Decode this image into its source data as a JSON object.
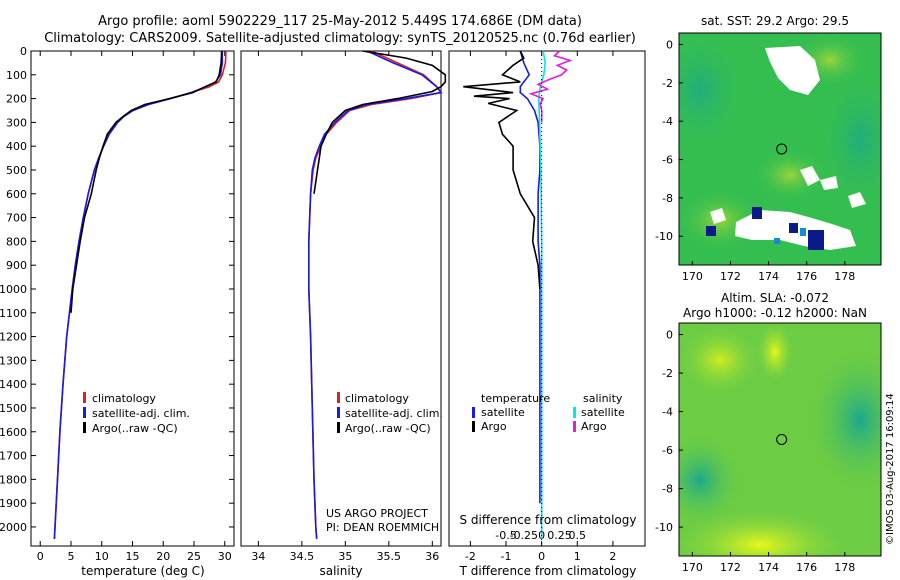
{
  "header": {
    "title_line1": "Argo profile: aoml 5902229_117 25-May-2012 5.449S 174.686E (DM data)",
    "title_line2": "Climatology: CARS2009. Satellite-adjusted climatology: synTS_20120525.nc (0.76d earlier)"
  },
  "colors": {
    "climatology": "#e02020",
    "satellite": "#1a1ae6",
    "argo": "#000000",
    "salinity_satellite": "#00e5ee",
    "salinity_argo": "#e21ee2"
  },
  "chart_data": [
    {
      "type": "line",
      "name": "temperature-profile",
      "xlabel": "temperature (deg C)",
      "ylabel": "",
      "xlim": [
        -1.5,
        31.5
      ],
      "ylim": [
        2080,
        0
      ],
      "xticks": [
        0,
        5,
        10,
        15,
        20,
        25,
        30
      ],
      "yticks": [
        0,
        100,
        200,
        300,
        400,
        500,
        600,
        700,
        800,
        900,
        1000,
        1100,
        1200,
        1300,
        1400,
        1500,
        1600,
        1700,
        1800,
        1900,
        2000
      ],
      "legend": [
        "climatology",
        "satellite-adj. clim.",
        "Argo(..raw -QC)"
      ],
      "series": [
        {
          "name": "climatology",
          "depth": [
            0,
            50,
            100,
            130,
            150,
            175,
            200,
            225,
            250,
            275,
            300,
            350,
            400,
            450,
            500,
            600,
            700,
            800,
            900,
            1000,
            1200,
            1400,
            1600,
            1800,
            2000,
            2050
          ],
          "values": [
            30.2,
            30.1,
            29.6,
            29,
            27.5,
            24.5,
            21,
            17.5,
            15,
            13.5,
            12.5,
            11.2,
            10.3,
            9.5,
            8.8,
            7.8,
            7,
            6.3,
            5.7,
            5.2,
            4.3,
            3.7,
            3.2,
            2.8,
            2.4,
            2.3
          ]
        },
        {
          "name": "satellite-adj. clim.",
          "depth": [
            0,
            50,
            100,
            130,
            150,
            175,
            200,
            225,
            250,
            275,
            300,
            350,
            400,
            450,
            500,
            600,
            700,
            800,
            900,
            1000,
            1200,
            1400,
            1600,
            1800,
            2000,
            2050
          ],
          "values": [
            29.6,
            29.6,
            29.3,
            28.5,
            27,
            24.5,
            21.2,
            17.6,
            15.1,
            13.6,
            12.6,
            11.2,
            10.3,
            9.5,
            8.8,
            7.8,
            7,
            6.3,
            5.7,
            5.2,
            4.3,
            3.7,
            3.2,
            2.8,
            2.4,
            2.3
          ]
        },
        {
          "name": "Argo(..raw -QC)",
          "depth": [
            0,
            50,
            100,
            130,
            150,
            175,
            200,
            225,
            250,
            275,
            300,
            350,
            400,
            450,
            500,
            600,
            700,
            800,
            900,
            1000,
            1100
          ],
          "values": [
            29.5,
            29.4,
            29.1,
            28.6,
            26.8,
            24.8,
            21,
            17,
            14.8,
            13.5,
            12.3,
            10.9,
            10.2,
            9.6,
            9.1,
            8.3,
            7.2,
            6.5,
            5.9,
            5.3,
            5
          ]
        }
      ]
    },
    {
      "type": "line",
      "name": "salinity-profile",
      "xlabel": "salinity",
      "xlim": [
        33.8,
        36.1
      ],
      "ylim": [
        2080,
        0
      ],
      "xticks": [
        34,
        34.5,
        35,
        35.5,
        36
      ],
      "legend": [
        "climatology",
        "satellite-adj. clim.",
        "Argo(..raw -QC)"
      ],
      "annotation": [
        "US ARGO PROJECT",
        "PI: DEAN ROEMMICH"
      ],
      "series": [
        {
          "name": "climatology",
          "depth": [
            0,
            50,
            100,
            150,
            175,
            200,
            225,
            250,
            300,
            350,
            400,
            450,
            500,
            600,
            800,
            1000,
            1200,
            1500,
            1800,
            2000,
            2050
          ],
          "values": [
            35.3,
            35.6,
            35.9,
            36.05,
            36.1,
            35.75,
            35.3,
            35.05,
            34.9,
            34.78,
            34.72,
            34.66,
            34.63,
            34.6,
            34.58,
            34.58,
            34.6,
            34.62,
            34.64,
            34.66,
            34.67
          ]
        },
        {
          "name": "satellite-adj. clim.",
          "depth": [
            0,
            50,
            100,
            150,
            175,
            200,
            225,
            250,
            300,
            350,
            400,
            450,
            500,
            600,
            800,
            1000,
            1200,
            1500,
            1800,
            2000,
            2050
          ],
          "values": [
            35.25,
            35.55,
            35.88,
            36.05,
            36.1,
            35.7,
            35.25,
            35.03,
            34.88,
            34.76,
            34.7,
            34.65,
            34.62,
            34.6,
            34.58,
            34.58,
            34.6,
            34.62,
            34.64,
            34.66,
            34.67
          ]
        },
        {
          "name": "Argo(..raw -QC)",
          "depth": [
            0,
            30,
            60,
            100,
            130,
            150,
            170,
            200,
            225,
            250,
            300,
            350,
            400,
            450,
            500,
            550,
            600
          ],
          "values": [
            35.2,
            35.7,
            36.0,
            36.15,
            36.15,
            36.1,
            36.0,
            35.6,
            35.2,
            35.0,
            34.85,
            34.78,
            34.72,
            34.7,
            34.68,
            34.66,
            34.64
          ]
        }
      ]
    },
    {
      "type": "line",
      "name": "difference-profile",
      "xlabel": "T difference from climatology",
      "xlabel_top": "S difference from climatology",
      "xlim": [
        -2.6,
        2.9
      ],
      "ylim": [
        2080,
        0
      ],
      "xticks": [
        -2,
        -1,
        0,
        1,
        2
      ],
      "top_ticks": [
        -0.5,
        -0.25,
        0,
        0.25,
        0.5
      ],
      "legend_titles": [
        "temperature",
        "salinity"
      ],
      "legend_left": [
        "satellite",
        "Argo"
      ],
      "legend_right": [
        "satellite",
        "Argo"
      ],
      "series": [
        {
          "name": "temperature satellite",
          "depth": [
            0,
            50,
            100,
            150,
            175,
            200,
            250,
            300,
            400,
            500,
            600,
            700,
            800,
            900,
            1000,
            1200,
            1400,
            1600,
            1800,
            1900
          ],
          "values": [
            -0.6,
            -0.5,
            -0.35,
            -0.6,
            -0.6,
            -0.4,
            -0.2,
            -0.1,
            -0.05,
            -0.05,
            -0.1,
            -0.1,
            -0.1,
            -0.05,
            -0.05,
            -0.05,
            -0.05,
            -0.05,
            -0.05,
            -0.05
          ]
        },
        {
          "name": "temperature Argo",
          "depth": [
            0,
            30,
            60,
            100,
            130,
            150,
            175,
            190,
            200,
            220,
            250,
            300,
            350,
            400,
            500,
            600,
            700,
            800,
            900,
            1000
          ],
          "values": [
            -0.6,
            -0.5,
            -0.8,
            -1.1,
            -0.6,
            -2.2,
            -0.8,
            -1.9,
            -0.9,
            -1.5,
            -0.7,
            -1.2,
            -1.1,
            -0.8,
            -0.8,
            -0.6,
            -0.2,
            -0.25,
            -0.1,
            -0.05
          ]
        },
        {
          "name": "salinity satellite",
          "depth": [
            0,
            50,
            100,
            150,
            200,
            300,
            500,
            800,
            1200,
            1600,
            2000,
            2050
          ],
          "values": [
            0.02,
            0.05,
            0.03,
            -0.02,
            -0.04,
            -0.03,
            -0.01,
            0,
            0,
            0,
            0,
            0
          ]
        },
        {
          "name": "salinity Argo",
          "depth": [
            0,
            20,
            40,
            60,
            80,
            100,
            120,
            140,
            160,
            180,
            200,
            220,
            250,
            300
          ],
          "values": [
            0.25,
            0.18,
            0.4,
            0.22,
            0.35,
            0.28,
            0.1,
            -0.05,
            0.08,
            -0.15,
            0.02,
            -0.02,
            0,
            0
          ]
        }
      ]
    },
    {
      "type": "heatmap",
      "name": "sst-map",
      "title": "sat. SST: 29.2  Argo: 29.5",
      "xticks": [
        170,
        172,
        174,
        176,
        178
      ],
      "yticks": [
        0,
        -2,
        -4,
        -6,
        -8,
        -10
      ],
      "xlim": [
        169.3,
        179.9
      ],
      "ylim": [
        -11.5,
        0.6
      ],
      "marker": [
        174.686,
        -5.449
      ]
    },
    {
      "type": "heatmap",
      "name": "sla-map",
      "title_line1": "Altim. SLA: -0.072",
      "title_line2": "Argo h1000: -0.12  h2000: NaN",
      "xticks": [
        170,
        172,
        174,
        176,
        178
      ],
      "yticks": [
        0,
        -2,
        -4,
        -6,
        -8,
        -10
      ],
      "xlim": [
        169.3,
        179.9
      ],
      "ylim": [
        -11.5,
        0.6
      ],
      "marker": [
        174.686,
        -5.449
      ]
    }
  ],
  "credit": "©IMOS 03-Aug-2017 16:09:14"
}
